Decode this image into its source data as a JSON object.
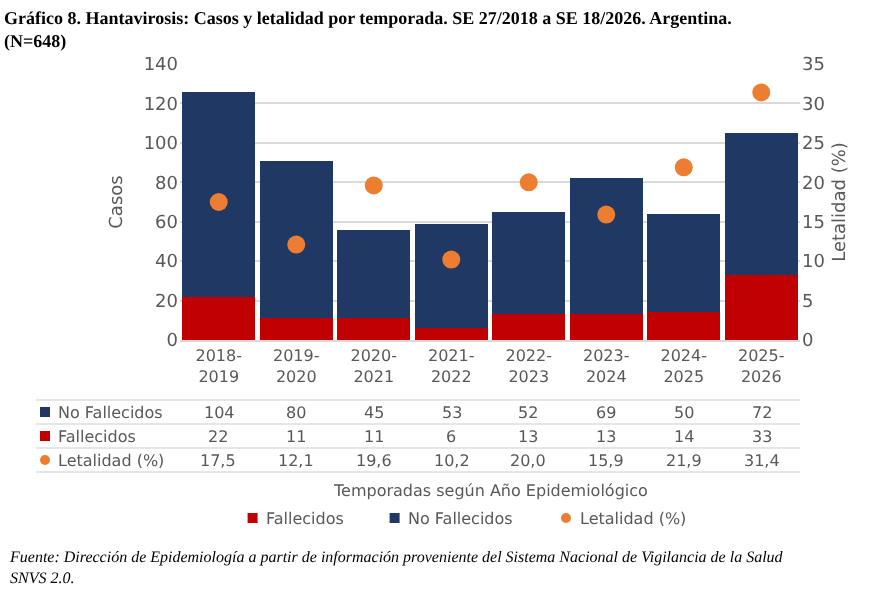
{
  "chart_data": {
    "type": "bar",
    "title": "Gráfico 8. Hantavirosis: Casos y letalidad por temporada. SE 27/2018 a SE 18/2026. Argentina. (N=648)",
    "categories": [
      "2018-2019",
      "2019-2020",
      "2020-2021",
      "2021-2022",
      "2022-2023",
      "2023-2024",
      "2024-2025",
      "2025-2026"
    ],
    "stacked": true,
    "series": [
      {
        "name": "Fallecidos",
        "color": "#c00000",
        "values": [
          22,
          11,
          11,
          6,
          13,
          13,
          14,
          33
        ],
        "value_labels": [
          "22",
          "11",
          "11",
          "6",
          "13",
          "13",
          "14",
          "33"
        ]
      },
      {
        "name": "No Fallecidos",
        "color": "#1f3864",
        "values": [
          104,
          80,
          45,
          53,
          52,
          69,
          50,
          72
        ],
        "value_labels": [
          "104",
          "80",
          "45",
          "53",
          "52",
          "69",
          "50",
          "72"
        ]
      },
      {
        "name": "Letalidad (%)",
        "type": "scatter",
        "axis": "y2",
        "color": "#ed7d31",
        "values": [
          17.5,
          12.1,
          19.6,
          10.2,
          20.0,
          15.9,
          21.9,
          31.4
        ],
        "value_labels": [
          "17,5",
          "12,1",
          "19,6",
          "10,2",
          "20,0",
          "15,9",
          "21,9",
          "31,4"
        ]
      }
    ],
    "ylabel": "Casos",
    "y2label": "Letalidad (%)",
    "ylim": [
      0,
      140
    ],
    "yticks": [
      0,
      20,
      40,
      60,
      80,
      100,
      120,
      140
    ],
    "y2lim": [
      0,
      35
    ],
    "y2ticks": [
      0,
      5,
      10,
      15,
      20,
      25,
      30,
      35
    ],
    "grid": "y",
    "legend": "bottom",
    "marker": "circle",
    "annotations": [
      "Temporadas según Año Epidemiológico",
      "Fuente: Dirección de Epidemiología a partir de información proveniente del Sistema Nacional de Vigilancia de la Salud SNVS 2.0."
    ]
  }
}
